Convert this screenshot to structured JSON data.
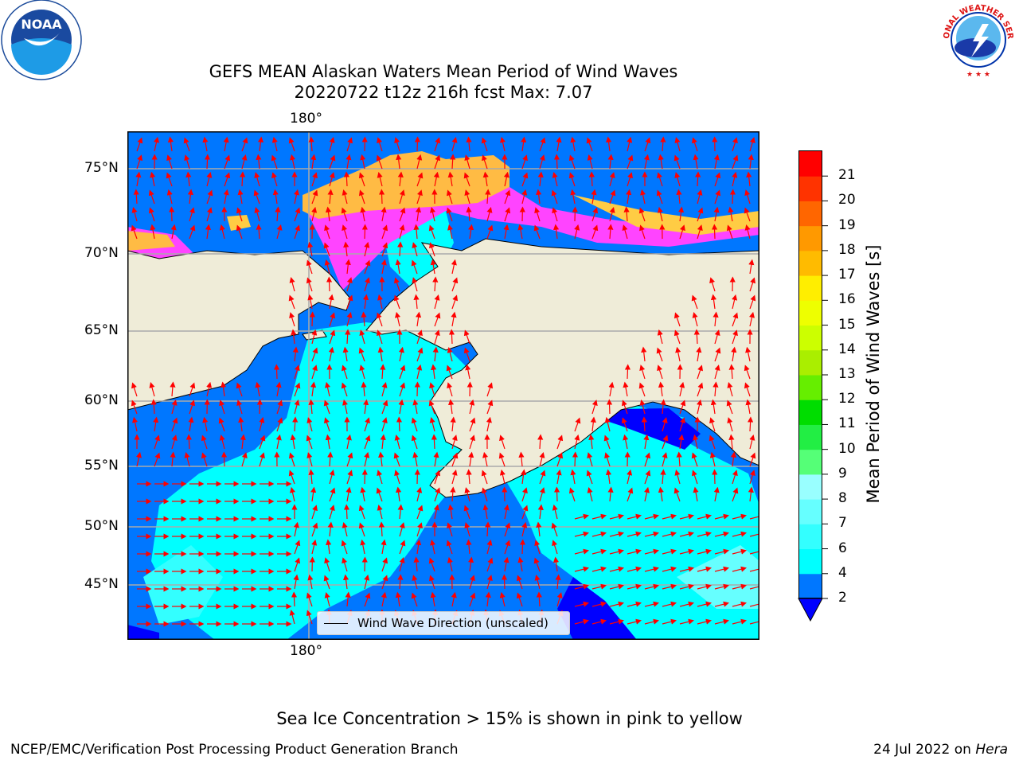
{
  "header": {
    "title_line1": "GEFS MEAN Alaskan Waters Mean Period of Wind Waves",
    "title_line2": "20220722 t12z 216h fcst   Max: 7.07"
  },
  "logos": {
    "noaa_text": "NOAA",
    "nws_text": "NATIONAL WEATHER SERVICE"
  },
  "map": {
    "lon_labels": {
      "top": "180°",
      "bottom": "180°"
    },
    "lat_labels": [
      "75°N",
      "70°N",
      "65°N",
      "60°N",
      "55°N",
      "50°N",
      "45°N"
    ],
    "legend_label": "Wind Wave Direction (unscaled)",
    "land_color": "#efecd8",
    "arrow_color": "#ff0000"
  },
  "colorbar": {
    "label": "Mean Period of Wind Waves [s]",
    "ticks": [
      "2",
      "4",
      "6",
      "7",
      "8",
      "9",
      "10",
      "11",
      "12",
      "13",
      "14",
      "15",
      "16",
      "17",
      "18",
      "19",
      "20",
      "21"
    ],
    "colors": [
      "#0077ff",
      "#00ffff",
      "#33ffff",
      "#66ffff",
      "#99ffff",
      "#55ff77",
      "#22ee44",
      "#00dd00",
      "#66ee00",
      "#aaee00",
      "#ccff00",
      "#eeff00",
      "#ffee00",
      "#ffbb00",
      "#ff9900",
      "#ff6600",
      "#ff3300",
      "#ff0000"
    ],
    "extend_color": "#0000ff"
  },
  "chart_data": {
    "type": "heatmap",
    "title": "GEFS MEAN Alaskan Waters Mean Period of Wind Waves",
    "subtitle": "20220722 t12z 216h fcst   Max: 7.07",
    "colorbar_label": "Mean Period of Wind Waves [s]",
    "value_range": [
      2,
      21
    ],
    "max_value": 7.07,
    "overlay": "Wind Wave Direction (unscaled)",
    "lat_range": [
      41,
      77
    ],
    "grid": true
  },
  "caption": "Sea Ice Concentration > 15% is shown in pink to yellow",
  "footer": {
    "left": "NCEP/EMC/Verification Post Processing Product Generation Branch",
    "right_date": "24 Jul 2022 on ",
    "right_host": "Hera"
  }
}
